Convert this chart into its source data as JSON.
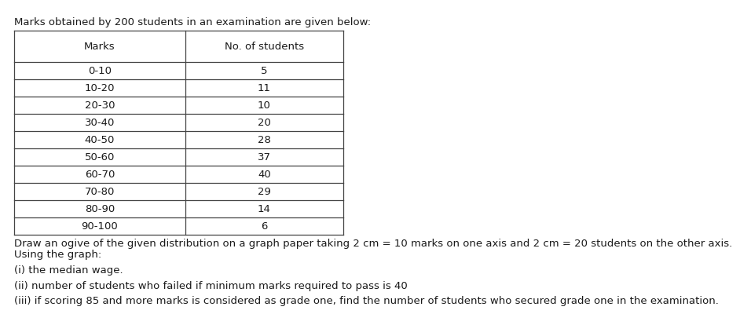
{
  "intro_text": "Marks obtained by 200 students in an examination are given below:",
  "col1_header": "Marks",
  "col2_header": "No. of students",
  "rows": [
    [
      "0-10",
      "5"
    ],
    [
      "10-20",
      "11"
    ],
    [
      "20-30",
      "10"
    ],
    [
      "30-40",
      "20"
    ],
    [
      "40-50",
      "28"
    ],
    [
      "50-60",
      "37"
    ],
    [
      "60-70",
      "40"
    ],
    [
      "70-80",
      "29"
    ],
    [
      "80-90",
      "14"
    ],
    [
      "90-100",
      "6"
    ]
  ],
  "bottom_texts": [
    "Draw an ogive of the given distribution on a graph paper taking 2 cm = 10 marks on one axis and 2 cm = 20 students on the other axis.",
    "Using the graph:",
    "",
    "(i) the median wage.",
    "",
    "(ii) number of students who failed if minimum marks required to pass is 40",
    "",
    "(iii) if scoring 85 and more marks is considered as grade one, find the number of students who secured grade one in the examination."
  ],
  "bg_color": "#ffffff",
  "text_color": "#1a1a1a",
  "table_border_color": "#444444",
  "font_size_intro": 9.5,
  "font_size_table": 9.5,
  "font_size_bottom": 9.5
}
